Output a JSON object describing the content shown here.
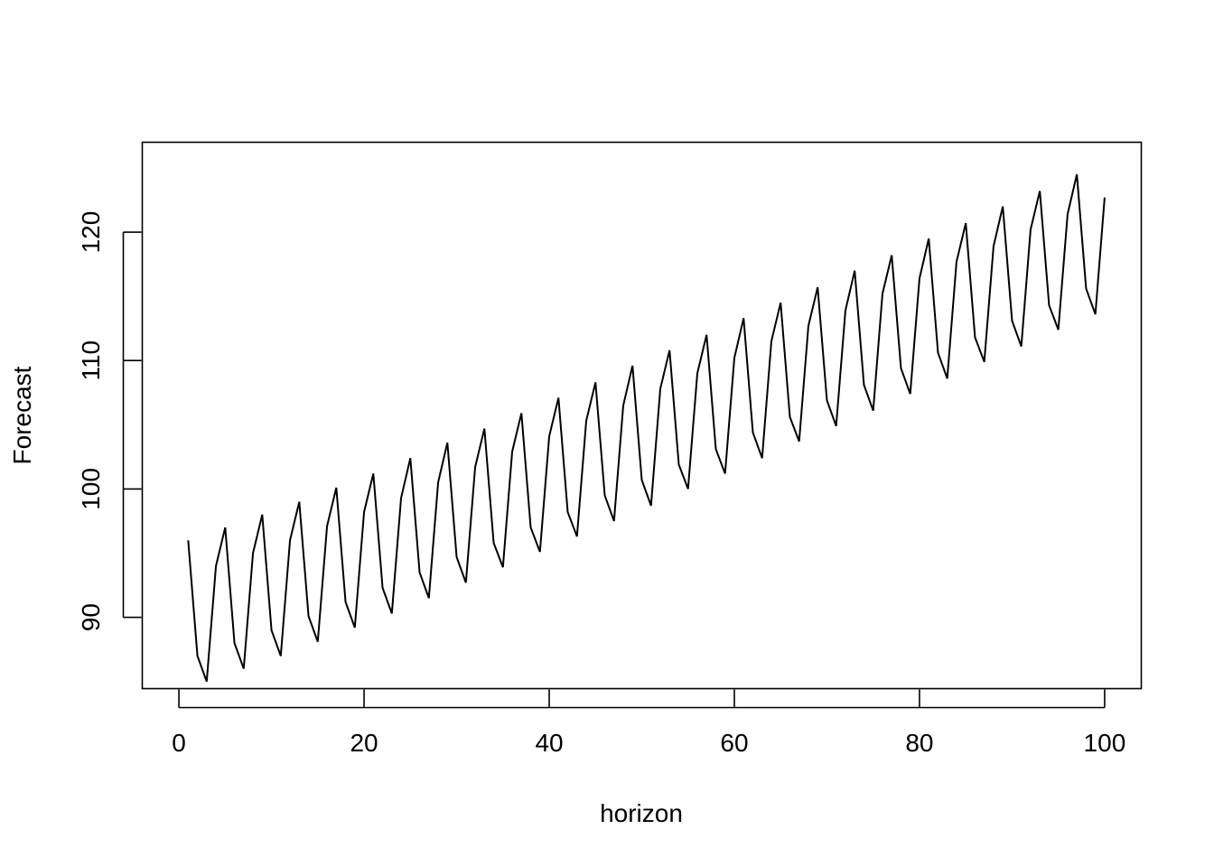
{
  "chart_data": {
    "type": "line",
    "title": "",
    "xlabel": "horizon",
    "ylabel": "Forecast",
    "xlim": [
      -3.96,
      103.96
    ],
    "ylim": [
      84.45,
      127.0
    ],
    "x_ticks": [
      0,
      20,
      40,
      60,
      80,
      100
    ],
    "y_ticks": [
      90,
      100,
      110,
      120
    ],
    "grid": false,
    "series": [
      {
        "x": [
          1,
          2,
          3,
          4,
          5,
          6,
          7,
          8,
          9,
          10,
          11,
          12,
          13,
          14,
          15,
          16,
          17,
          18,
          19,
          20,
          21,
          22,
          23,
          24,
          25,
          26,
          27,
          28,
          29,
          30,
          31,
          32,
          33,
          34,
          35,
          36,
          37,
          38,
          39,
          40,
          41,
          42,
          43,
          44,
          45,
          46,
          47,
          48,
          49,
          50,
          51,
          52,
          53,
          54,
          55,
          56,
          57,
          58,
          59,
          60,
          61,
          62,
          63,
          64,
          65,
          66,
          67,
          68,
          69,
          70,
          71,
          72,
          73,
          74,
          75,
          76,
          77,
          78,
          79,
          80,
          81,
          82,
          83,
          84,
          85,
          86,
          87,
          88,
          89,
          90,
          91,
          92,
          93,
          94,
          95,
          96,
          97,
          98,
          99,
          100
        ],
        "values": [
          96,
          87,
          85,
          94,
          97,
          88,
          86,
          95,
          98,
          89,
          87,
          96,
          99,
          90.1,
          88.1,
          97.1,
          100.1,
          91.2,
          89.2,
          98.2,
          101.2,
          92.3,
          90.3,
          99.3,
          102.4,
          93.5,
          91.5,
          100.5,
          103.6,
          94.7,
          92.7,
          101.7,
          104.7,
          95.8,
          93.9,
          102.9,
          105.9,
          97,
          95.1,
          104.1,
          107.1,
          98.2,
          96.3,
          105.3,
          108.3,
          99.5,
          97.5,
          106.5,
          109.6,
          100.7,
          98.7,
          107.8,
          110.8,
          101.9,
          100,
          109,
          112,
          103.1,
          101.2,
          110.2,
          113.3,
          104.4,
          102.4,
          111.5,
          114.5,
          105.6,
          103.7,
          112.7,
          115.7,
          106.9,
          104.9,
          113.9,
          117,
          108.1,
          106.1,
          115.2,
          118.2,
          109.4,
          107.4,
          116.4,
          119.5,
          110.6,
          108.6,
          117.7,
          120.7,
          111.8,
          109.9,
          118.9,
          122,
          113.1,
          111.1,
          120.2,
          123.2,
          114.3,
          112.4,
          121.4,
          124.5,
          115.6,
          113.6,
          122.7
        ]
      }
    ]
  }
}
